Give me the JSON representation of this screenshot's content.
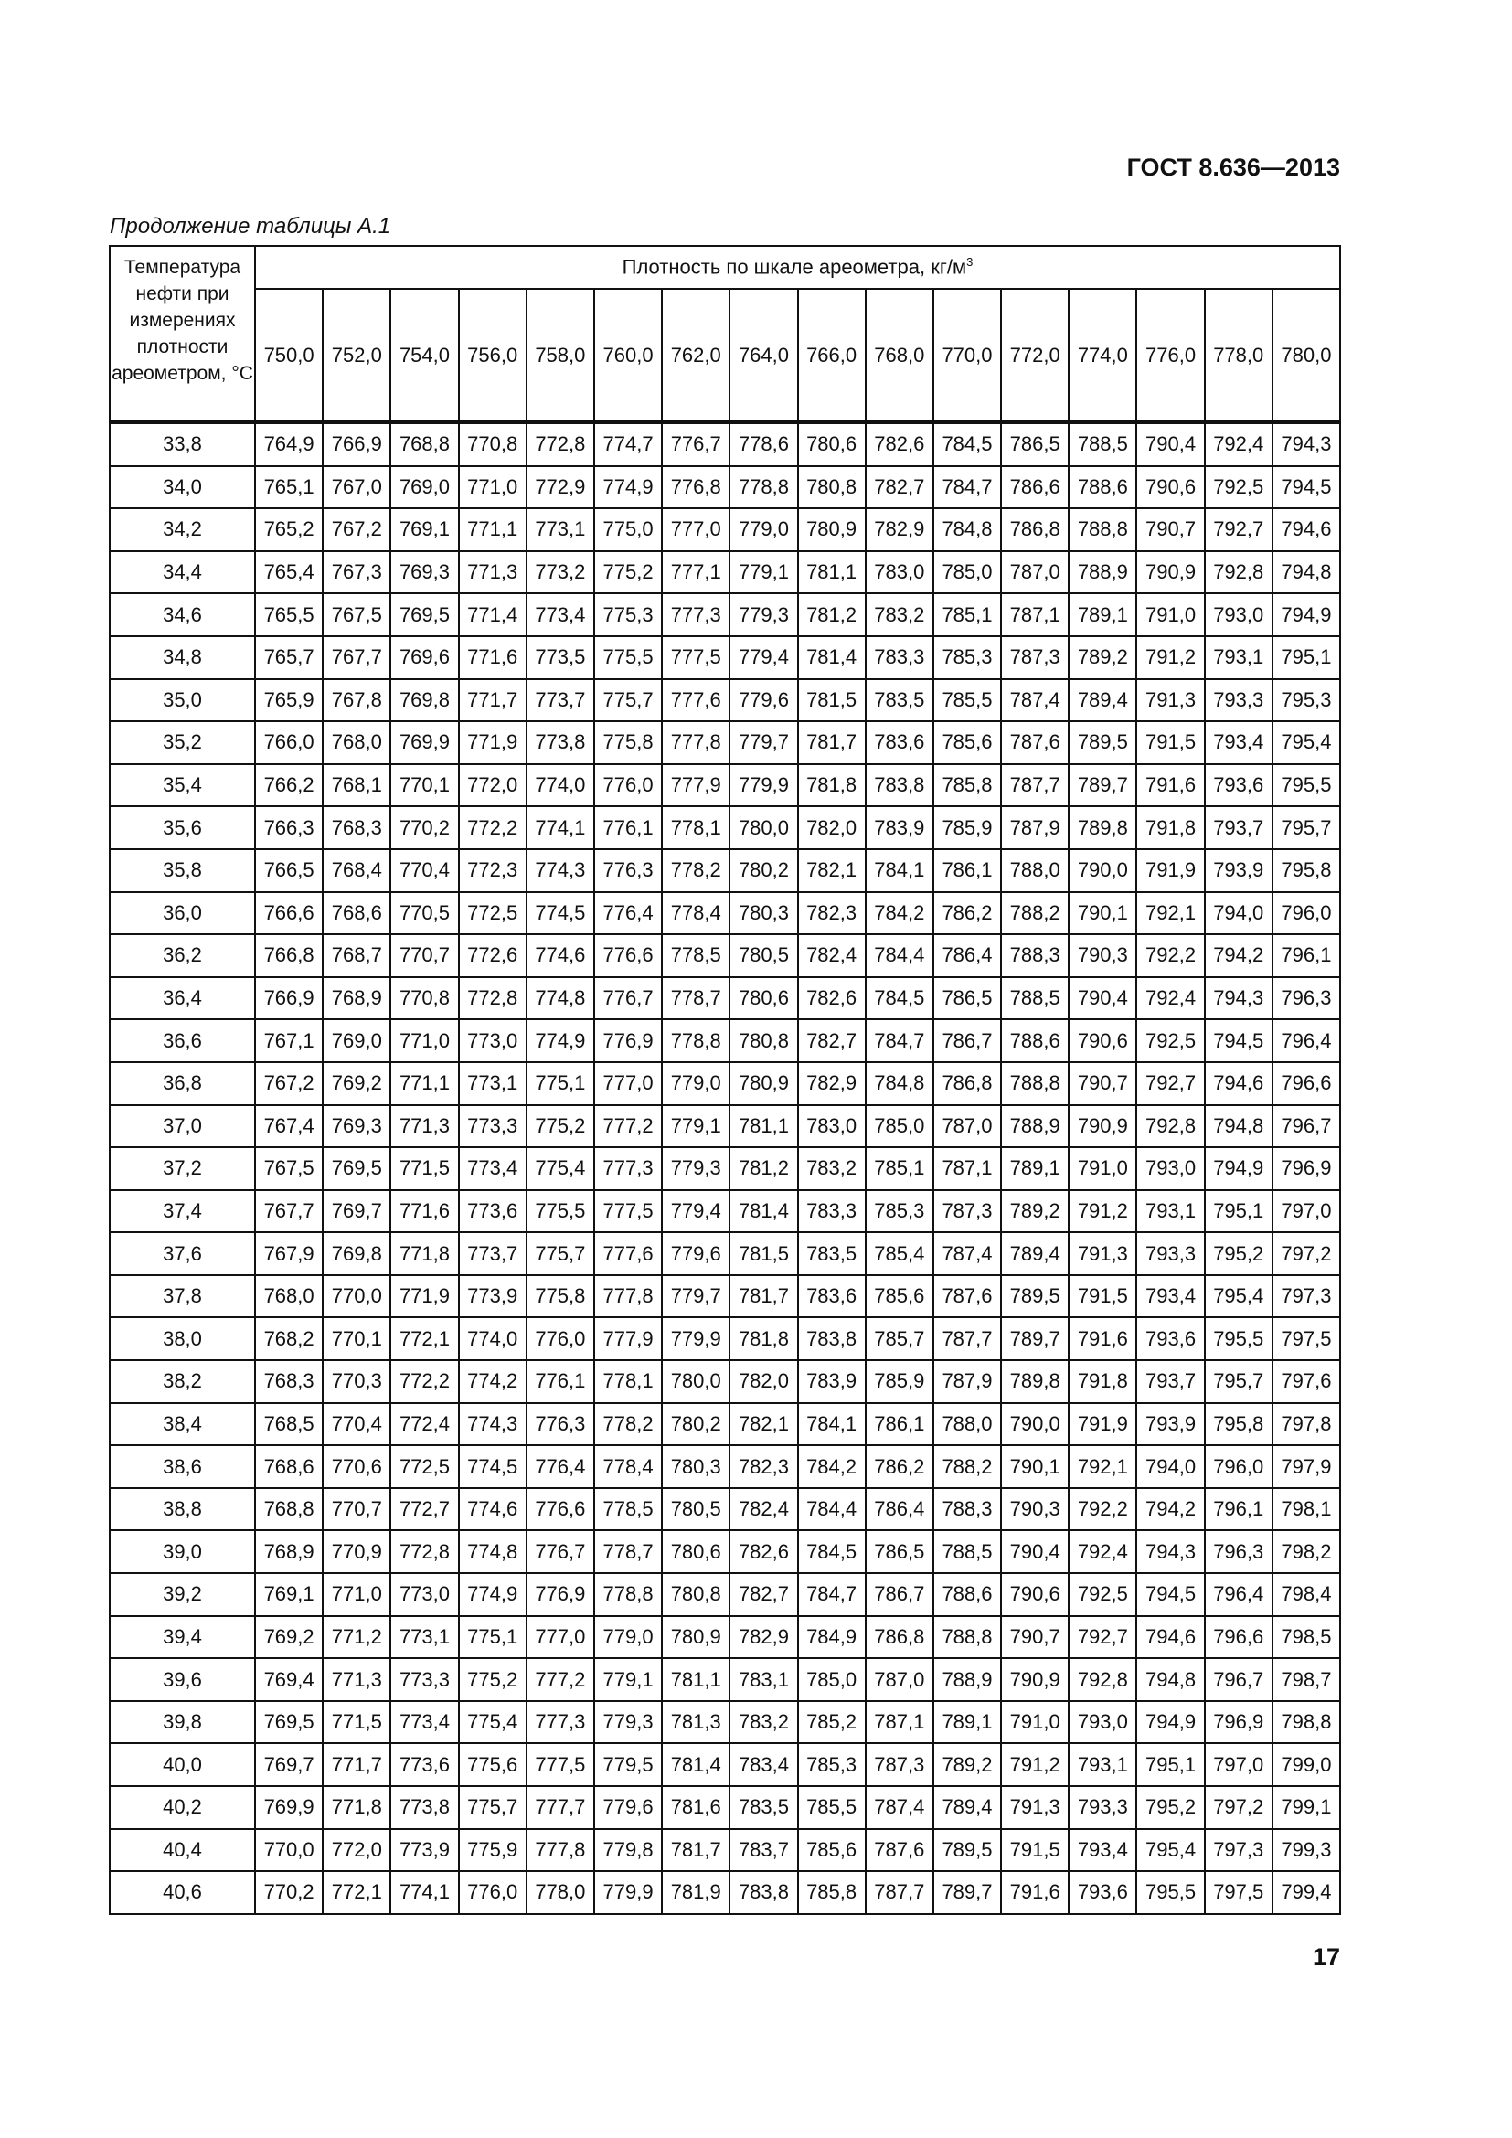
{
  "header": {
    "standard": "ГОСТ 8.636—2013"
  },
  "caption": "Продолжение таблицы А.1",
  "table": {
    "row_header": "Температура нефти при измерениях плотности ареометром, °С",
    "group_header": "Плотность по шкале ареометра, кг/м",
    "group_header_sup": "3",
    "columns": [
      "750,0",
      "752,0",
      "754,0",
      "756,0",
      "758,0",
      "760,0",
      "762,0",
      "764,0",
      "766,0",
      "768,0",
      "770,0",
      "772,0",
      "774,0",
      "776,0",
      "778,0",
      "780,0"
    ],
    "rows": [
      {
        "t": "33,8",
        "v": [
          "764,9",
          "766,9",
          "768,8",
          "770,8",
          "772,8",
          "774,7",
          "776,7",
          "778,6",
          "780,6",
          "782,6",
          "784,5",
          "786,5",
          "788,5",
          "790,4",
          "792,4",
          "794,3"
        ]
      },
      {
        "t": "34,0",
        "v": [
          "765,1",
          "767,0",
          "769,0",
          "771,0",
          "772,9",
          "774,9",
          "776,8",
          "778,8",
          "780,8",
          "782,7",
          "784,7",
          "786,6",
          "788,6",
          "790,6",
          "792,5",
          "794,5"
        ]
      },
      {
        "t": "34,2",
        "v": [
          "765,2",
          "767,2",
          "769,1",
          "771,1",
          "773,1",
          "775,0",
          "777,0",
          "779,0",
          "780,9",
          "782,9",
          "784,8",
          "786,8",
          "788,8",
          "790,7",
          "792,7",
          "794,6"
        ]
      },
      {
        "t": "34,4",
        "v": [
          "765,4",
          "767,3",
          "769,3",
          "771,3",
          "773,2",
          "775,2",
          "777,1",
          "779,1",
          "781,1",
          "783,0",
          "785,0",
          "787,0",
          "788,9",
          "790,9",
          "792,8",
          "794,8"
        ]
      },
      {
        "t": "34,6",
        "v": [
          "765,5",
          "767,5",
          "769,5",
          "771,4",
          "773,4",
          "775,3",
          "777,3",
          "779,3",
          "781,2",
          "783,2",
          "785,1",
          "787,1",
          "789,1",
          "791,0",
          "793,0",
          "794,9"
        ]
      },
      {
        "t": "34,8",
        "v": [
          "765,7",
          "767,7",
          "769,6",
          "771,6",
          "773,5",
          "775,5",
          "777,5",
          "779,4",
          "781,4",
          "783,3",
          "785,3",
          "787,3",
          "789,2",
          "791,2",
          "793,1",
          "795,1"
        ]
      },
      {
        "t": "35,0",
        "v": [
          "765,9",
          "767,8",
          "769,8",
          "771,7",
          "773,7",
          "775,7",
          "777,6",
          "779,6",
          "781,5",
          "783,5",
          "785,5",
          "787,4",
          "789,4",
          "791,3",
          "793,3",
          "795,3"
        ]
      },
      {
        "t": "35,2",
        "v": [
          "766,0",
          "768,0",
          "769,9",
          "771,9",
          "773,8",
          "775,8",
          "777,8",
          "779,7",
          "781,7",
          "783,6",
          "785,6",
          "787,6",
          "789,5",
          "791,5",
          "793,4",
          "795,4"
        ]
      },
      {
        "t": "35,4",
        "v": [
          "766,2",
          "768,1",
          "770,1",
          "772,0",
          "774,0",
          "776,0",
          "777,9",
          "779,9",
          "781,8",
          "783,8",
          "785,8",
          "787,7",
          "789,7",
          "791,6",
          "793,6",
          "795,5"
        ]
      },
      {
        "t": "35,6",
        "v": [
          "766,3",
          "768,3",
          "770,2",
          "772,2",
          "774,1",
          "776,1",
          "778,1",
          "780,0",
          "782,0",
          "783,9",
          "785,9",
          "787,9",
          "789,8",
          "791,8",
          "793,7",
          "795,7"
        ]
      },
      {
        "t": "35,8",
        "v": [
          "766,5",
          "768,4",
          "770,4",
          "772,3",
          "774,3",
          "776,3",
          "778,2",
          "780,2",
          "782,1",
          "784,1",
          "786,1",
          "788,0",
          "790,0",
          "791,9",
          "793,9",
          "795,8"
        ]
      },
      {
        "t": "36,0",
        "v": [
          "766,6",
          "768,6",
          "770,5",
          "772,5",
          "774,5",
          "776,4",
          "778,4",
          "780,3",
          "782,3",
          "784,2",
          "786,2",
          "788,2",
          "790,1",
          "792,1",
          "794,0",
          "796,0"
        ]
      },
      {
        "t": "36,2",
        "v": [
          "766,8",
          "768,7",
          "770,7",
          "772,6",
          "774,6",
          "776,6",
          "778,5",
          "780,5",
          "782,4",
          "784,4",
          "786,4",
          "788,3",
          "790,3",
          "792,2",
          "794,2",
          "796,1"
        ]
      },
      {
        "t": "36,4",
        "v": [
          "766,9",
          "768,9",
          "770,8",
          "772,8",
          "774,8",
          "776,7",
          "778,7",
          "780,6",
          "782,6",
          "784,5",
          "786,5",
          "788,5",
          "790,4",
          "792,4",
          "794,3",
          "796,3"
        ]
      },
      {
        "t": "36,6",
        "v": [
          "767,1",
          "769,0",
          "771,0",
          "773,0",
          "774,9",
          "776,9",
          "778,8",
          "780,8",
          "782,7",
          "784,7",
          "786,7",
          "788,6",
          "790,6",
          "792,5",
          "794,5",
          "796,4"
        ]
      },
      {
        "t": "36,8",
        "v": [
          "767,2",
          "769,2",
          "771,1",
          "773,1",
          "775,1",
          "777,0",
          "779,0",
          "780,9",
          "782,9",
          "784,8",
          "786,8",
          "788,8",
          "790,7",
          "792,7",
          "794,6",
          "796,6"
        ]
      },
      {
        "t": "37,0",
        "v": [
          "767,4",
          "769,3",
          "771,3",
          "773,3",
          "775,2",
          "777,2",
          "779,1",
          "781,1",
          "783,0",
          "785,0",
          "787,0",
          "788,9",
          "790,9",
          "792,8",
          "794,8",
          "796,7"
        ]
      },
      {
        "t": "37,2",
        "v": [
          "767,5",
          "769,5",
          "771,5",
          "773,4",
          "775,4",
          "777,3",
          "779,3",
          "781,2",
          "783,2",
          "785,1",
          "787,1",
          "789,1",
          "791,0",
          "793,0",
          "794,9",
          "796,9"
        ]
      },
      {
        "t": "37,4",
        "v": [
          "767,7",
          "769,7",
          "771,6",
          "773,6",
          "775,5",
          "777,5",
          "779,4",
          "781,4",
          "783,3",
          "785,3",
          "787,3",
          "789,2",
          "791,2",
          "793,1",
          "795,1",
          "797,0"
        ]
      },
      {
        "t": "37,6",
        "v": [
          "767,9",
          "769,8",
          "771,8",
          "773,7",
          "775,7",
          "777,6",
          "779,6",
          "781,5",
          "783,5",
          "785,4",
          "787,4",
          "789,4",
          "791,3",
          "793,3",
          "795,2",
          "797,2"
        ]
      },
      {
        "t": "37,8",
        "v": [
          "768,0",
          "770,0",
          "771,9",
          "773,9",
          "775,8",
          "777,8",
          "779,7",
          "781,7",
          "783,6",
          "785,6",
          "787,6",
          "789,5",
          "791,5",
          "793,4",
          "795,4",
          "797,3"
        ]
      },
      {
        "t": "38,0",
        "v": [
          "768,2",
          "770,1",
          "772,1",
          "774,0",
          "776,0",
          "777,9",
          "779,9",
          "781,8",
          "783,8",
          "785,7",
          "787,7",
          "789,7",
          "791,6",
          "793,6",
          "795,5",
          "797,5"
        ]
      },
      {
        "t": "38,2",
        "v": [
          "768,3",
          "770,3",
          "772,2",
          "774,2",
          "776,1",
          "778,1",
          "780,0",
          "782,0",
          "783,9",
          "785,9",
          "787,9",
          "789,8",
          "791,8",
          "793,7",
          "795,7",
          "797,6"
        ]
      },
      {
        "t": "38,4",
        "v": [
          "768,5",
          "770,4",
          "772,4",
          "774,3",
          "776,3",
          "778,2",
          "780,2",
          "782,1",
          "784,1",
          "786,1",
          "788,0",
          "790,0",
          "791,9",
          "793,9",
          "795,8",
          "797,8"
        ]
      },
      {
        "t": "38,6",
        "v": [
          "768,6",
          "770,6",
          "772,5",
          "774,5",
          "776,4",
          "778,4",
          "780,3",
          "782,3",
          "784,2",
          "786,2",
          "788,2",
          "790,1",
          "792,1",
          "794,0",
          "796,0",
          "797,9"
        ]
      },
      {
        "t": "38,8",
        "v": [
          "768,8",
          "770,7",
          "772,7",
          "774,6",
          "776,6",
          "778,5",
          "780,5",
          "782,4",
          "784,4",
          "786,4",
          "788,3",
          "790,3",
          "792,2",
          "794,2",
          "796,1",
          "798,1"
        ]
      },
      {
        "t": "39,0",
        "v": [
          "768,9",
          "770,9",
          "772,8",
          "774,8",
          "776,7",
          "778,7",
          "780,6",
          "782,6",
          "784,5",
          "786,5",
          "788,5",
          "790,4",
          "792,4",
          "794,3",
          "796,3",
          "798,2"
        ]
      },
      {
        "t": "39,2",
        "v": [
          "769,1",
          "771,0",
          "773,0",
          "774,9",
          "776,9",
          "778,8",
          "780,8",
          "782,7",
          "784,7",
          "786,7",
          "788,6",
          "790,6",
          "792,5",
          "794,5",
          "796,4",
          "798,4"
        ]
      },
      {
        "t": "39,4",
        "v": [
          "769,2",
          "771,2",
          "773,1",
          "775,1",
          "777,0",
          "779,0",
          "780,9",
          "782,9",
          "784,9",
          "786,8",
          "788,8",
          "790,7",
          "792,7",
          "794,6",
          "796,6",
          "798,5"
        ]
      },
      {
        "t": "39,6",
        "v": [
          "769,4",
          "771,3",
          "773,3",
          "775,2",
          "777,2",
          "779,1",
          "781,1",
          "783,1",
          "785,0",
          "787,0",
          "788,9",
          "790,9",
          "792,8",
          "794,8",
          "796,7",
          "798,7"
        ]
      },
      {
        "t": "39,8",
        "v": [
          "769,5",
          "771,5",
          "773,4",
          "775,4",
          "777,3",
          "779,3",
          "781,3",
          "783,2",
          "785,2",
          "787,1",
          "789,1",
          "791,0",
          "793,0",
          "794,9",
          "796,9",
          "798,8"
        ]
      },
      {
        "t": "40,0",
        "v": [
          "769,7",
          "771,7",
          "773,6",
          "775,6",
          "777,5",
          "779,5",
          "781,4",
          "783,4",
          "785,3",
          "787,3",
          "789,2",
          "791,2",
          "793,1",
          "795,1",
          "797,0",
          "799,0"
        ]
      },
      {
        "t": "40,2",
        "v": [
          "769,9",
          "771,8",
          "773,8",
          "775,7",
          "777,7",
          "779,6",
          "781,6",
          "783,5",
          "785,5",
          "787,4",
          "789,4",
          "791,3",
          "793,3",
          "795,2",
          "797,2",
          "799,1"
        ]
      },
      {
        "t": "40,4",
        "v": [
          "770,0",
          "772,0",
          "773,9",
          "775,9",
          "777,8",
          "779,8",
          "781,7",
          "783,7",
          "785,6",
          "787,6",
          "789,5",
          "791,5",
          "793,4",
          "795,4",
          "797,3",
          "799,3"
        ]
      },
      {
        "t": "40,6",
        "v": [
          "770,2",
          "772,1",
          "774,1",
          "776,0",
          "778,0",
          "779,9",
          "781,9",
          "783,8",
          "785,8",
          "787,7",
          "789,7",
          "791,6",
          "793,6",
          "795,5",
          "797,5",
          "799,4"
        ]
      }
    ]
  },
  "footer": {
    "page_number": "17"
  }
}
